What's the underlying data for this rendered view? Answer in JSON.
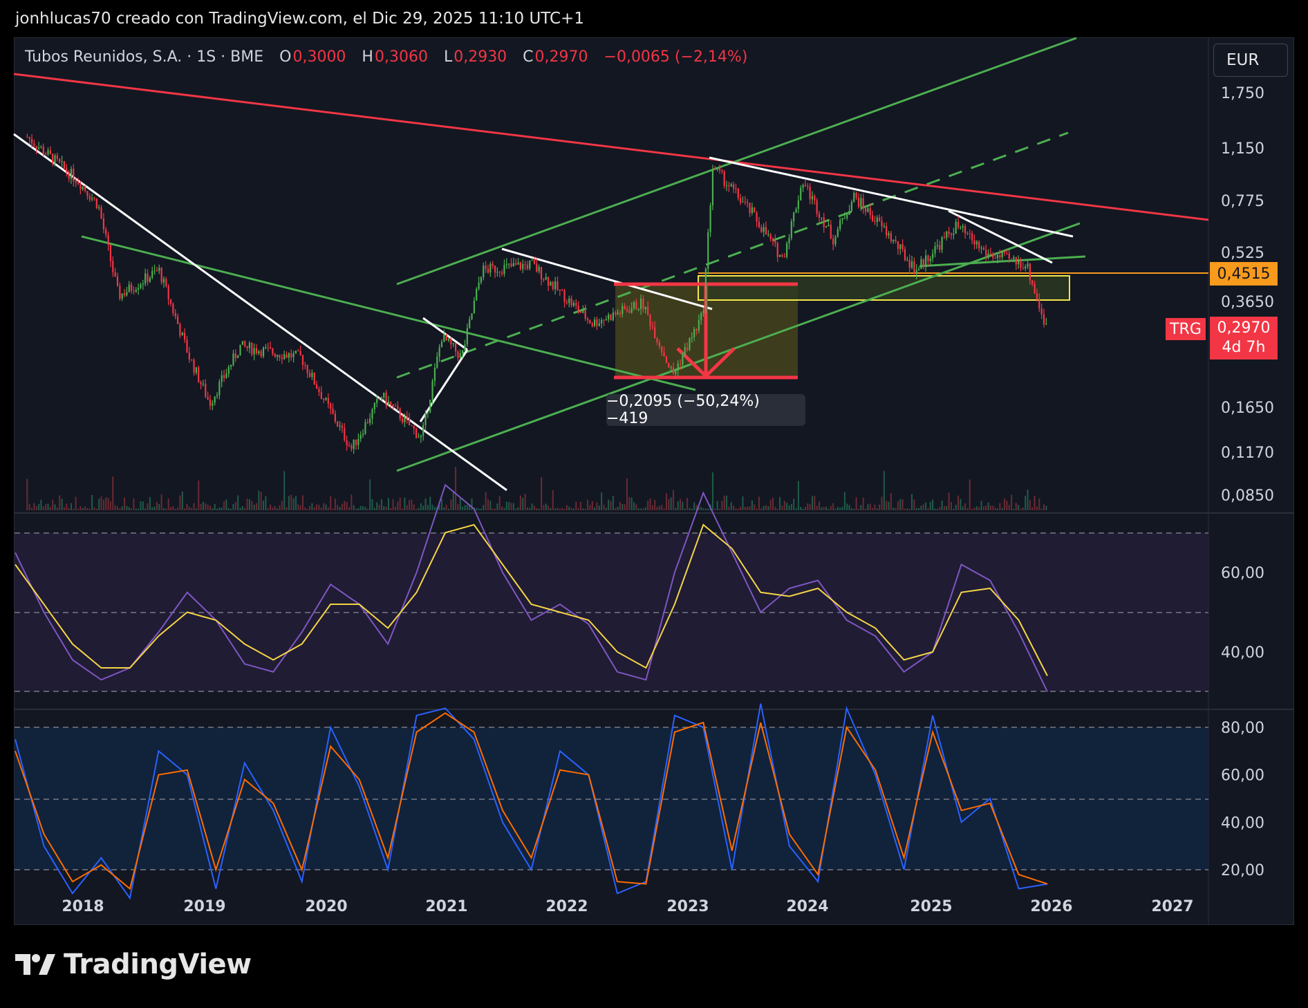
{
  "header": {
    "attribution": "jonhlucas70 creado con TradingView.com, el Dic 29, 2025 11:10 UTC+1"
  },
  "legend": {
    "symbol_info": "Tubos Reunidos, S.A. · 1S · BME",
    "o_label": "O",
    "o_value": "0,3000",
    "h_label": "H",
    "h_value": "0,3060",
    "l_label": "L",
    "l_value": "0,2930",
    "c_label": "C",
    "c_value": "0,2970",
    "change": "−0,0065 (−2,14%)"
  },
  "currency": "EUR",
  "price_axis_labels": [
    "1,750",
    "1,150",
    "0,775",
    "0,525",
    "0,3650",
    "0,1650",
    "0,1170",
    "0,0850"
  ],
  "horizontal_line_label": "0,4515",
  "last_price": {
    "symbol": "TRG",
    "value": "0,2970",
    "countdown": "4d 7h"
  },
  "measurement": "−0,2095 (−50,24%) −419",
  "rsi_axis_labels": [
    "60,00",
    "40,00"
  ],
  "stoch_axis_labels": [
    "80,00",
    "60,00",
    "40,00",
    "20,00"
  ],
  "time_axis_labels": [
    "2018",
    "2019",
    "2020",
    "2021",
    "2022",
    "2023",
    "2024",
    "2025",
    "2026",
    "2027"
  ],
  "logo_text": "TradingView",
  "colors": {
    "background": "#131722",
    "up_candle": "#4caf50",
    "down_candle": "#f23645",
    "trendline_white": "#ffffff",
    "channel_green": "#4caf50",
    "resistance_red": "#f23645",
    "rsi_line": "#7e57c2",
    "rsi_ma": "#f5d547",
    "stoch_k": "#2962ff",
    "stoch_d": "#ff6d00"
  },
  "chart_data": [
    {
      "type": "candlestick",
      "title": "Tubos Reunidos, S.A. · 1S · BME",
      "scale": "log",
      "price_ticks": [
        1.75,
        1.15,
        0.775,
        0.525,
        0.365,
        0.165,
        0.117,
        0.085
      ],
      "x_ticks": [
        "2018",
        "2019",
        "2020",
        "2021",
        "2022",
        "2023",
        "2024",
        "2025",
        "2026",
        "2027"
      ],
      "approx_close_path": [
        {
          "x": "2017-07",
          "y": 1.25
        },
        {
          "x": "2017-12",
          "y": 0.9
        },
        {
          "x": "2018-02",
          "y": 0.75
        },
        {
          "x": "2018-04",
          "y": 0.38
        },
        {
          "x": "2018-08",
          "y": 0.46
        },
        {
          "x": "2018-11",
          "y": 0.24
        },
        {
          "x": "2019-01",
          "y": 0.17
        },
        {
          "x": "2019-04",
          "y": 0.26
        },
        {
          "x": "2019-10",
          "y": 0.24
        },
        {
          "x": "2020-03",
          "y": 0.12
        },
        {
          "x": "2020-06",
          "y": 0.18
        },
        {
          "x": "2020-10",
          "y": 0.13
        },
        {
          "x": "2020-12",
          "y": 0.28
        },
        {
          "x": "2021-02",
          "y": 0.24
        },
        {
          "x": "2021-04",
          "y": 0.46
        },
        {
          "x": "2021-09",
          "y": 0.48
        },
        {
          "x": "2022-03",
          "y": 0.31
        },
        {
          "x": "2022-08",
          "y": 0.36
        },
        {
          "x": "2022-11",
          "y": 0.21
        },
        {
          "x": "2023-02",
          "y": 0.33
        },
        {
          "x": "2023-03",
          "y": 1.0
        },
        {
          "x": "2023-07",
          "y": 0.7
        },
        {
          "x": "2023-10",
          "y": 0.5
        },
        {
          "x": "2023-12",
          "y": 0.9
        },
        {
          "x": "2024-03",
          "y": 0.58
        },
        {
          "x": "2024-05",
          "y": 0.8
        },
        {
          "x": "2024-08",
          "y": 0.62
        },
        {
          "x": "2024-11",
          "y": 0.46
        },
        {
          "x": "2025-03",
          "y": 0.64
        },
        {
          "x": "2025-06",
          "y": 0.52
        },
        {
          "x": "2025-10",
          "y": 0.48
        },
        {
          "x": "2025-12",
          "y": 0.297
        }
      ],
      "last_close": 0.297,
      "horizontal_line": 0.4515,
      "measured_move": {
        "change": -0.2095,
        "percent": -50.24,
        "bars": -419
      }
    },
    {
      "type": "line",
      "title": "RSI",
      "y_ticks": [
        60,
        40
      ],
      "series": [
        {
          "name": "",
          "values": [
            65,
            50,
            38,
            33,
            36,
            45,
            55,
            48,
            37,
            35,
            45,
            57,
            52,
            42,
            60,
            82,
            76,
            60,
            48,
            52,
            47,
            35,
            33,
            60,
            80,
            65,
            50,
            56,
            58,
            48,
            44,
            35,
            40,
            62,
            58,
            45,
            30
          ]
        },
        {
          "name": "",
          "values": [
            62,
            52,
            42,
            36,
            36,
            44,
            50,
            48,
            42,
            38,
            42,
            52,
            52,
            46,
            55,
            70,
            72,
            62,
            52,
            50,
            48,
            40,
            36,
            52,
            72,
            66,
            55,
            54,
            56,
            50,
            46,
            38,
            40,
            55,
            56,
            48,
            34
          ]
        }
      ]
    },
    {
      "type": "line",
      "title": "Stochastic",
      "y_ticks": [
        80,
        60,
        40,
        20
      ],
      "series": [
        {
          "name": "",
          "values": [
            75,
            30,
            10,
            25,
            8,
            70,
            60,
            12,
            65,
            45,
            15,
            80,
            55,
            20,
            85,
            88,
            75,
            40,
            20,
            70,
            60,
            10,
            15,
            85,
            80,
            20,
            90,
            30,
            15,
            88,
            60,
            20,
            85,
            40,
            50,
            12,
            14
          ]
        },
        {
          "name": "",
          "values": [
            70,
            35,
            15,
            22,
            12,
            60,
            62,
            20,
            58,
            48,
            20,
            72,
            58,
            25,
            78,
            86,
            78,
            45,
            25,
            62,
            60,
            15,
            14,
            78,
            82,
            28,
            82,
            35,
            18,
            80,
            62,
            25,
            78,
            45,
            48,
            18,
            14
          ]
        }
      ]
    }
  ]
}
